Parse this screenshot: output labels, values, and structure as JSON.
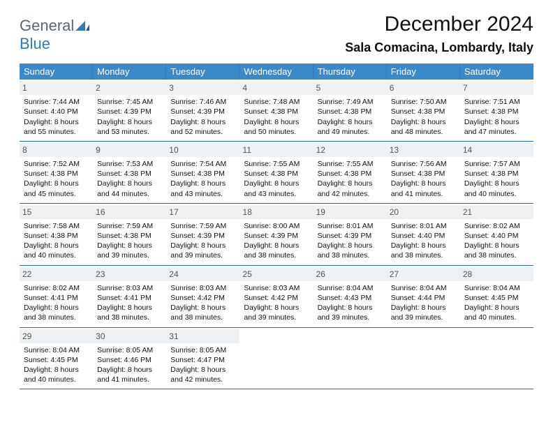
{
  "logo": {
    "part1": "General",
    "part2": "Blue"
  },
  "title": "December 2024",
  "location": "Sala Comacina, Lombardy, Italy",
  "colors": {
    "header_bg": "#3a8ac9",
    "header_text": "#ffffff",
    "daynum_bg": "#eef1f3",
    "daynum_text": "#555555",
    "rule": "#2f6fa8",
    "logo_gray": "#5b6770",
    "logo_blue": "#2f7bbf"
  },
  "day_names": [
    "Sunday",
    "Monday",
    "Tuesday",
    "Wednesday",
    "Thursday",
    "Friday",
    "Saturday"
  ],
  "weeks": [
    [
      {
        "n": "1",
        "sr": "Sunrise: 7:44 AM",
        "ss": "Sunset: 4:40 PM",
        "d1": "Daylight: 8 hours",
        "d2": "and 55 minutes."
      },
      {
        "n": "2",
        "sr": "Sunrise: 7:45 AM",
        "ss": "Sunset: 4:39 PM",
        "d1": "Daylight: 8 hours",
        "d2": "and 53 minutes."
      },
      {
        "n": "3",
        "sr": "Sunrise: 7:46 AM",
        "ss": "Sunset: 4:39 PM",
        "d1": "Daylight: 8 hours",
        "d2": "and 52 minutes."
      },
      {
        "n": "4",
        "sr": "Sunrise: 7:48 AM",
        "ss": "Sunset: 4:38 PM",
        "d1": "Daylight: 8 hours",
        "d2": "and 50 minutes."
      },
      {
        "n": "5",
        "sr": "Sunrise: 7:49 AM",
        "ss": "Sunset: 4:38 PM",
        "d1": "Daylight: 8 hours",
        "d2": "and 49 minutes."
      },
      {
        "n": "6",
        "sr": "Sunrise: 7:50 AM",
        "ss": "Sunset: 4:38 PM",
        "d1": "Daylight: 8 hours",
        "d2": "and 48 minutes."
      },
      {
        "n": "7",
        "sr": "Sunrise: 7:51 AM",
        "ss": "Sunset: 4:38 PM",
        "d1": "Daylight: 8 hours",
        "d2": "and 47 minutes."
      }
    ],
    [
      {
        "n": "8",
        "sr": "Sunrise: 7:52 AM",
        "ss": "Sunset: 4:38 PM",
        "d1": "Daylight: 8 hours",
        "d2": "and 45 minutes."
      },
      {
        "n": "9",
        "sr": "Sunrise: 7:53 AM",
        "ss": "Sunset: 4:38 PM",
        "d1": "Daylight: 8 hours",
        "d2": "and 44 minutes."
      },
      {
        "n": "10",
        "sr": "Sunrise: 7:54 AM",
        "ss": "Sunset: 4:38 PM",
        "d1": "Daylight: 8 hours",
        "d2": "and 43 minutes."
      },
      {
        "n": "11",
        "sr": "Sunrise: 7:55 AM",
        "ss": "Sunset: 4:38 PM",
        "d1": "Daylight: 8 hours",
        "d2": "and 43 minutes."
      },
      {
        "n": "12",
        "sr": "Sunrise: 7:55 AM",
        "ss": "Sunset: 4:38 PM",
        "d1": "Daylight: 8 hours",
        "d2": "and 42 minutes."
      },
      {
        "n": "13",
        "sr": "Sunrise: 7:56 AM",
        "ss": "Sunset: 4:38 PM",
        "d1": "Daylight: 8 hours",
        "d2": "and 41 minutes."
      },
      {
        "n": "14",
        "sr": "Sunrise: 7:57 AM",
        "ss": "Sunset: 4:38 PM",
        "d1": "Daylight: 8 hours",
        "d2": "and 40 minutes."
      }
    ],
    [
      {
        "n": "15",
        "sr": "Sunrise: 7:58 AM",
        "ss": "Sunset: 4:38 PM",
        "d1": "Daylight: 8 hours",
        "d2": "and 40 minutes."
      },
      {
        "n": "16",
        "sr": "Sunrise: 7:59 AM",
        "ss": "Sunset: 4:38 PM",
        "d1": "Daylight: 8 hours",
        "d2": "and 39 minutes."
      },
      {
        "n": "17",
        "sr": "Sunrise: 7:59 AM",
        "ss": "Sunset: 4:39 PM",
        "d1": "Daylight: 8 hours",
        "d2": "and 39 minutes."
      },
      {
        "n": "18",
        "sr": "Sunrise: 8:00 AM",
        "ss": "Sunset: 4:39 PM",
        "d1": "Daylight: 8 hours",
        "d2": "and 38 minutes."
      },
      {
        "n": "19",
        "sr": "Sunrise: 8:01 AM",
        "ss": "Sunset: 4:39 PM",
        "d1": "Daylight: 8 hours",
        "d2": "and 38 minutes."
      },
      {
        "n": "20",
        "sr": "Sunrise: 8:01 AM",
        "ss": "Sunset: 4:40 PM",
        "d1": "Daylight: 8 hours",
        "d2": "and 38 minutes."
      },
      {
        "n": "21",
        "sr": "Sunrise: 8:02 AM",
        "ss": "Sunset: 4:40 PM",
        "d1": "Daylight: 8 hours",
        "d2": "and 38 minutes."
      }
    ],
    [
      {
        "n": "22",
        "sr": "Sunrise: 8:02 AM",
        "ss": "Sunset: 4:41 PM",
        "d1": "Daylight: 8 hours",
        "d2": "and 38 minutes."
      },
      {
        "n": "23",
        "sr": "Sunrise: 8:03 AM",
        "ss": "Sunset: 4:41 PM",
        "d1": "Daylight: 8 hours",
        "d2": "and 38 minutes."
      },
      {
        "n": "24",
        "sr": "Sunrise: 8:03 AM",
        "ss": "Sunset: 4:42 PM",
        "d1": "Daylight: 8 hours",
        "d2": "and 38 minutes."
      },
      {
        "n": "25",
        "sr": "Sunrise: 8:03 AM",
        "ss": "Sunset: 4:42 PM",
        "d1": "Daylight: 8 hours",
        "d2": "and 39 minutes."
      },
      {
        "n": "26",
        "sr": "Sunrise: 8:04 AM",
        "ss": "Sunset: 4:43 PM",
        "d1": "Daylight: 8 hours",
        "d2": "and 39 minutes."
      },
      {
        "n": "27",
        "sr": "Sunrise: 8:04 AM",
        "ss": "Sunset: 4:44 PM",
        "d1": "Daylight: 8 hours",
        "d2": "and 39 minutes."
      },
      {
        "n": "28",
        "sr": "Sunrise: 8:04 AM",
        "ss": "Sunset: 4:45 PM",
        "d1": "Daylight: 8 hours",
        "d2": "and 40 minutes."
      }
    ],
    [
      {
        "n": "29",
        "sr": "Sunrise: 8:04 AM",
        "ss": "Sunset: 4:45 PM",
        "d1": "Daylight: 8 hours",
        "d2": "and 40 minutes."
      },
      {
        "n": "30",
        "sr": "Sunrise: 8:05 AM",
        "ss": "Sunset: 4:46 PM",
        "d1": "Daylight: 8 hours",
        "d2": "and 41 minutes."
      },
      {
        "n": "31",
        "sr": "Sunrise: 8:05 AM",
        "ss": "Sunset: 4:47 PM",
        "d1": "Daylight: 8 hours",
        "d2": "and 42 minutes."
      },
      null,
      null,
      null,
      null
    ]
  ]
}
